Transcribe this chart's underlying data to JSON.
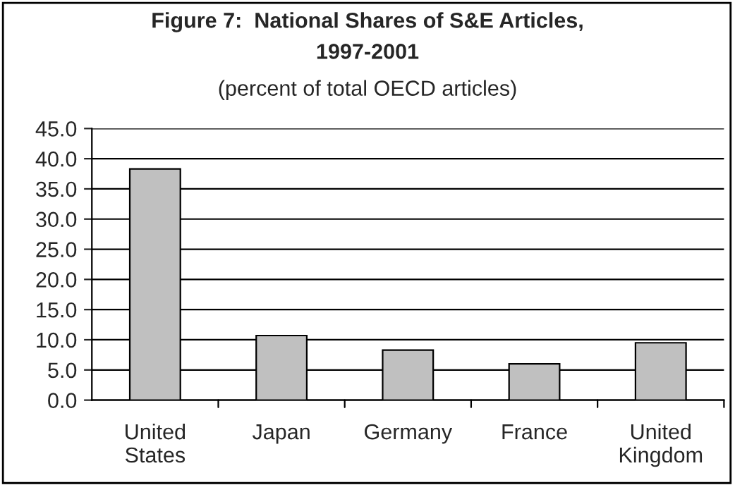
{
  "chart_data": {
    "type": "bar",
    "title": "Figure 7:  National Shares of S&E Articles,\n1997-2001",
    "subtitle": "(percent of total OECD articles)",
    "categories": [
      "United\nStates",
      "Japan",
      "Germany",
      "France",
      "United\nKingdom"
    ],
    "values": [
      38.3,
      10.7,
      8.3,
      6.0,
      9.5
    ],
    "color": "#c0c0c0",
    "ylim": [
      0,
      45
    ],
    "yticks": [
      {
        "value": 0,
        "label": "0.0"
      },
      {
        "value": 5,
        "label": "5.0"
      },
      {
        "value": 10,
        "label": "10.0"
      },
      {
        "value": 15,
        "label": "15.0"
      },
      {
        "value": 20,
        "label": "20.0"
      },
      {
        "value": 25,
        "label": "25.0"
      },
      {
        "value": 30,
        "label": "30.0"
      },
      {
        "value": 35,
        "label": "35.0"
      },
      {
        "value": 40,
        "label": "40.0"
      },
      {
        "value": 45,
        "label": "45.0"
      }
    ],
    "grid": "y"
  }
}
